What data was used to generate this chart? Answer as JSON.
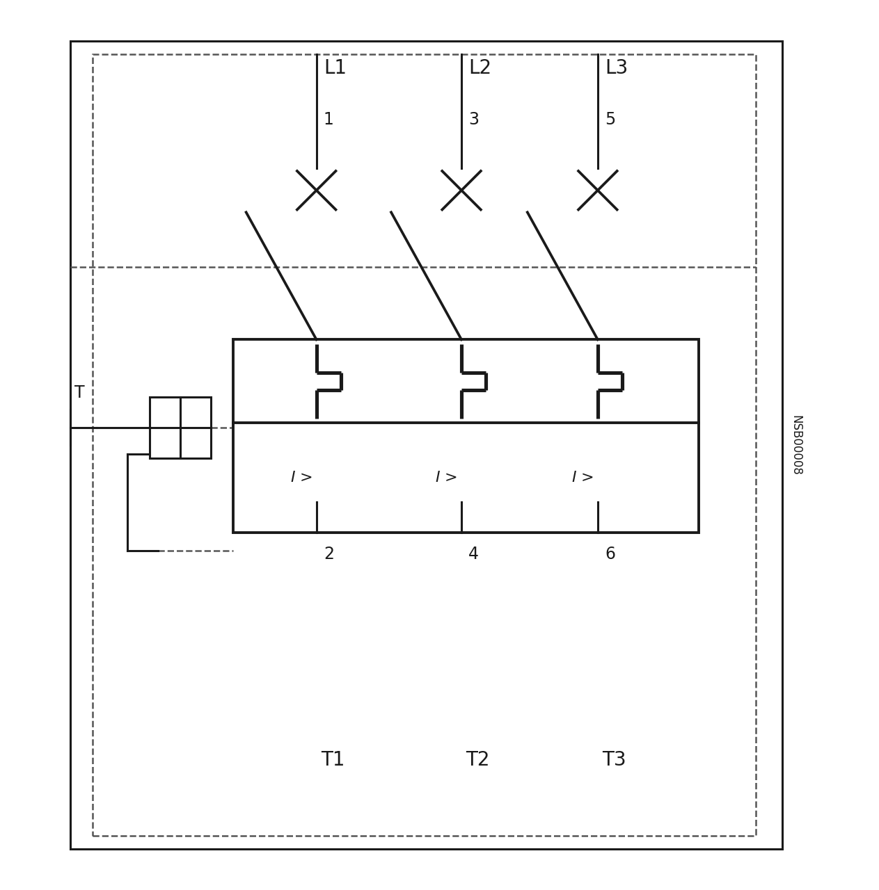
{
  "bg_color": "#ffffff",
  "line_color": "#1a1a1a",
  "dashed_color": "#555555",
  "label_nsb": "NSB00008",
  "label_l1": "L1",
  "label_l2": "L2",
  "label_l3": "L3",
  "label_1": "1",
  "label_3": "3",
  "label_5": "5",
  "label_2": "2",
  "label_4": "4",
  "label_6": "6",
  "label_t1": "T1",
  "label_t2": "T2",
  "label_t3": "T3",
  "font_size_large": 20,
  "font_size_med": 17,
  "lw_main": 2.2,
  "lw_dashed": 1.8,
  "lw_thick": 2.8
}
